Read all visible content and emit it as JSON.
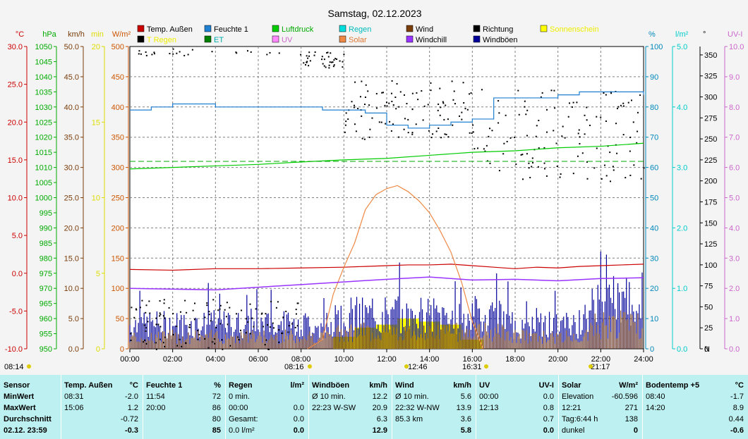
{
  "title": "Samstag, 02.12.2023",
  "legend": [
    {
      "label": "Temp. Außen",
      "color": "#cc0000",
      "text_color": "#000000",
      "row": 0,
      "col": 0
    },
    {
      "label": "Feuchte 1",
      "color": "#1f7fd0",
      "text_color": "#000000",
      "row": 0,
      "col": 1
    },
    {
      "label": "Luftdruck",
      "color": "#00cc00",
      "text_color": "#00aa00",
      "row": 0,
      "col": 2
    },
    {
      "label": "Regen",
      "color": "#00dddd",
      "text_color": "#00bbbb",
      "row": 0,
      "col": 3
    },
    {
      "label": "Wind",
      "color": "#7a3d0a",
      "text_color": "#000000",
      "row": 0,
      "col": 4
    },
    {
      "label": "Richtung",
      "color": "#000000",
      "text_color": "#000000",
      "row": 0,
      "col": 5
    },
    {
      "label": "Sonnenschein",
      "color": "#ffff00",
      "text_color": "#eeee00",
      "row": 0,
      "col": 6
    },
    {
      "label": "T Regen",
      "color": "#000000",
      "text_color": "#eeee00",
      "row": 1,
      "col": 0
    },
    {
      "label": "ET",
      "color": "#008000",
      "text_color": "#00aaaa",
      "row": 1,
      "col": 1
    },
    {
      "label": "UV",
      "color": "#ff88ff",
      "text_color": "#cc66cc",
      "row": 1,
      "col": 2
    },
    {
      "label": "Solar",
      "color": "#ee8844",
      "text_color": "#dd7733",
      "row": 1,
      "col": 3
    },
    {
      "label": "Windchill",
      "color": "#9933ff",
      "text_color": "#000000",
      "row": 1,
      "col": 4
    },
    {
      "label": "Windböen",
      "color": "#000099",
      "text_color": "#000000",
      "row": 1,
      "col": 5
    }
  ],
  "left_axes": [
    {
      "unit": "°C",
      "color": "#cc0000",
      "ticks": [
        "30.0",
        "25.0",
        "20.0",
        "15.0",
        "10.0",
        "5.0",
        "0.0",
        "-5.0",
        "-10.0"
      ]
    },
    {
      "unit": "hPa",
      "color": "#00aa00",
      "ticks": [
        "1050",
        "1045",
        "1040",
        "1035",
        "1030",
        "1025",
        "1020",
        "1015",
        "1010",
        "1005",
        "1000",
        "995",
        "990",
        "985",
        "980",
        "975",
        "970",
        "965",
        "960",
        "955",
        "950"
      ]
    },
    {
      "unit": "km/h",
      "color": "#7a3d0a",
      "ticks": [
        "50.0",
        "45.0",
        "40.0",
        "35.0",
        "30.0",
        "25.0",
        "20.0",
        "15.0",
        "10.0",
        "5.0",
        "0.0"
      ]
    },
    {
      "unit": "min",
      "color": "#dddd00",
      "ticks": [
        "20",
        "15",
        "10",
        "5",
        "0"
      ]
    },
    {
      "unit": "W/m²",
      "color": "#cc5500",
      "ticks": [
        "500",
        "450",
        "400",
        "350",
        "300",
        "250",
        "200",
        "150",
        "100",
        "50",
        "0"
      ]
    }
  ],
  "right_axes": [
    {
      "unit": "%",
      "color": "#0088bb",
      "ticks": [
        "100",
        "90",
        "80",
        "70",
        "60",
        "50",
        "40",
        "30",
        "20",
        "10",
        "0"
      ]
    },
    {
      "unit": "l/m²",
      "color": "#00cccc",
      "ticks": [
        "5.0",
        "4.0",
        "3.0",
        "2.0",
        "1.0",
        "0.0"
      ]
    },
    {
      "unit": "°",
      "color": "#000000",
      "ticks": [
        "350",
        "325",
        "300",
        "275",
        "250",
        "225",
        "200",
        "175",
        "150",
        "125",
        "100",
        "75",
        "50",
        "25",
        "0"
      ],
      "bottom": "N"
    },
    {
      "unit": "UV-I",
      "color": "#cc66cc",
      "ticks": [
        "10.0",
        "9.0",
        "8.0",
        "7.0",
        "6.0",
        "5.0",
        "4.0",
        "3.0",
        "2.0",
        "1.0",
        "0.0"
      ]
    }
  ],
  "x_ticks": [
    "00:00",
    "02:00",
    "04:00",
    "06:00",
    "08:00",
    "10:00",
    "12:00",
    "14:00",
    "16:00",
    "18:00",
    "20:00",
    "22:00",
    "24:00"
  ],
  "sun_markers": {
    "sunrise": "08:16",
    "noon": "12:46",
    "sunset": "16:31",
    "left": "08:14",
    "moonset": "21:17"
  },
  "chart_data": {
    "type": "line",
    "x_range": [
      "00:00",
      "24:00"
    ],
    "grid": true,
    "series": [
      {
        "name": "Temp. Außen",
        "unit": "°C",
        "points": [
          [
            0,
            0.5
          ],
          [
            2,
            0.4
          ],
          [
            4,
            0.6
          ],
          [
            6,
            0.6
          ],
          [
            8,
            0.7
          ],
          [
            10,
            0.8
          ],
          [
            11,
            0.9
          ],
          [
            12,
            1.0
          ],
          [
            13,
            1.1
          ],
          [
            14,
            1.1
          ],
          [
            15,
            1.2
          ],
          [
            16,
            1.0
          ],
          [
            17,
            0.8
          ],
          [
            18,
            0.6
          ],
          [
            19,
            0.8
          ],
          [
            20,
            0.7
          ],
          [
            21,
            0.9
          ],
          [
            22,
            1.0
          ],
          [
            23,
            1.1
          ],
          [
            24,
            1.2
          ]
        ]
      },
      {
        "name": "Feuchte 1",
        "unit": "%",
        "points": [
          [
            0,
            79
          ],
          [
            1,
            80
          ],
          [
            2,
            81
          ],
          [
            3,
            81
          ],
          [
            4,
            80
          ],
          [
            5,
            80
          ],
          [
            6,
            80
          ],
          [
            7,
            80
          ],
          [
            8,
            80
          ],
          [
            9,
            79
          ],
          [
            10,
            79
          ],
          [
            11,
            78
          ],
          [
            12,
            74
          ],
          [
            13,
            73
          ],
          [
            14,
            74
          ],
          [
            15,
            75
          ],
          [
            16,
            76
          ],
          [
            17,
            83
          ],
          [
            18,
            83
          ],
          [
            19,
            83
          ],
          [
            20,
            84
          ],
          [
            21,
            85
          ],
          [
            22,
            85
          ],
          [
            23,
            85
          ],
          [
            24,
            84
          ]
        ]
      },
      {
        "name": "Luftdruck",
        "unit": "hPa",
        "points": [
          [
            0,
            1009.5
          ],
          [
            2,
            1010.0
          ],
          [
            4,
            1010.5
          ],
          [
            6,
            1011.0
          ],
          [
            8,
            1011.8
          ],
          [
            10,
            1012.5
          ],
          [
            12,
            1013.0
          ],
          [
            14,
            1014.0
          ],
          [
            16,
            1015.0
          ],
          [
            18,
            1015.5
          ],
          [
            20,
            1016.5
          ],
          [
            22,
            1017.0
          ],
          [
            24,
            1018.0
          ]
        ]
      },
      {
        "name": "Solar",
        "unit": "W/m²",
        "points": [
          [
            8.3,
            0
          ],
          [
            9.0,
            15
          ],
          [
            9.5,
            90
          ],
          [
            10.0,
            135
          ],
          [
            10.5,
            175
          ],
          [
            11.0,
            230
          ],
          [
            11.5,
            255
          ],
          [
            12.0,
            265
          ],
          [
            12.5,
            270
          ],
          [
            13.0,
            260
          ],
          [
            13.5,
            245
          ],
          [
            14.0,
            225
          ],
          [
            14.5,
            195
          ],
          [
            15.0,
            160
          ],
          [
            15.5,
            110
          ],
          [
            16.0,
            45
          ],
          [
            16.5,
            0
          ]
        ]
      },
      {
        "name": "Windchill",
        "unit": "°C",
        "points": [
          [
            0,
            -2.0
          ],
          [
            4,
            -2.2
          ],
          [
            8,
            -1.5
          ],
          [
            12,
            -0.8
          ],
          [
            14,
            -0.5
          ],
          [
            16,
            -0.9
          ],
          [
            18,
            -0.8
          ],
          [
            20,
            -1.0
          ],
          [
            22,
            -0.7
          ],
          [
            24,
            -0.6
          ]
        ]
      },
      {
        "name": "Sonnenschein",
        "unit": "min",
        "points": [
          [
            10,
            0.8
          ],
          [
            11,
            1.4
          ],
          [
            12,
            1.6
          ],
          [
            13,
            2.0
          ],
          [
            14,
            1.8
          ],
          [
            15,
            1.6
          ],
          [
            16,
            0.6
          ]
        ]
      }
    ],
    "wind": {
      "unit": "km/h",
      "avg": 3.6,
      "max": 13.9
    },
    "gusts": {
      "unit": "km/h",
      "avg": 6.3,
      "max": 20.9
    }
  },
  "table": {
    "labels": [
      "Sensor",
      "MinWert",
      "MaxWert",
      "Durchschnitt",
      "02.12.  23:59"
    ],
    "columns": [
      {
        "title": "Temp. Außen",
        "unit": "°C",
        "rows": [
          [
            "08:31",
            "-2.0"
          ],
          [
            "15:06",
            "1.2"
          ],
          [
            "",
            "-0.72"
          ],
          [
            "",
            "-0.3"
          ]
        ]
      },
      {
        "title": "Feuchte 1",
        "unit": "%",
        "rows": [
          [
            "11:54",
            "72"
          ],
          [
            "20:00",
            "86"
          ],
          [
            "",
            "80"
          ],
          [
            "",
            "85"
          ]
        ]
      },
      {
        "title": "Regen",
        "unit": "l/m²",
        "rows": [
          [
            "0 min.",
            ""
          ],
          [
            "00:00",
            "0.0"
          ],
          [
            "Gesamt:",
            "0.0"
          ],
          [
            "0.0 l/m²",
            "0.0"
          ]
        ]
      },
      {
        "title": "Windböen",
        "unit": "km/h",
        "rows": [
          [
            "Ø 10 min.",
            "12.2"
          ],
          [
            "22:23    W-SW",
            "20.9"
          ],
          [
            "",
            "6.3"
          ],
          [
            "",
            "12.9"
          ]
        ]
      },
      {
        "title": "Wind",
        "unit": "km/h",
        "rows": [
          [
            "Ø 10 min.",
            "5.6"
          ],
          [
            "22:32    W-NW",
            "13.9"
          ],
          [
            "85.3 km",
            "3.6"
          ],
          [
            "",
            "5.8"
          ]
        ]
      },
      {
        "title": "UV",
        "unit": "UV-I",
        "rows": [
          [
            "00:00",
            "0.0"
          ],
          [
            "12:13",
            "0.8"
          ],
          [
            "",
            "0.7"
          ],
          [
            "",
            "0.0"
          ]
        ]
      },
      {
        "title": "Solar",
        "unit": "W/m²",
        "rows": [
          [
            "Elevation",
            "-60.596"
          ],
          [
            "12:21",
            "271"
          ],
          [
            "Tag:6:44 h",
            "138"
          ],
          [
            "dunkel",
            "0"
          ]
        ]
      },
      {
        "title": "Bodentemp +5",
        "unit": "°C",
        "rows": [
          [
            "08:40",
            "-1.7"
          ],
          [
            "14:20",
            "8.9"
          ],
          [
            "",
            "0.44"
          ],
          [
            "",
            "-0.6"
          ]
        ]
      }
    ]
  }
}
